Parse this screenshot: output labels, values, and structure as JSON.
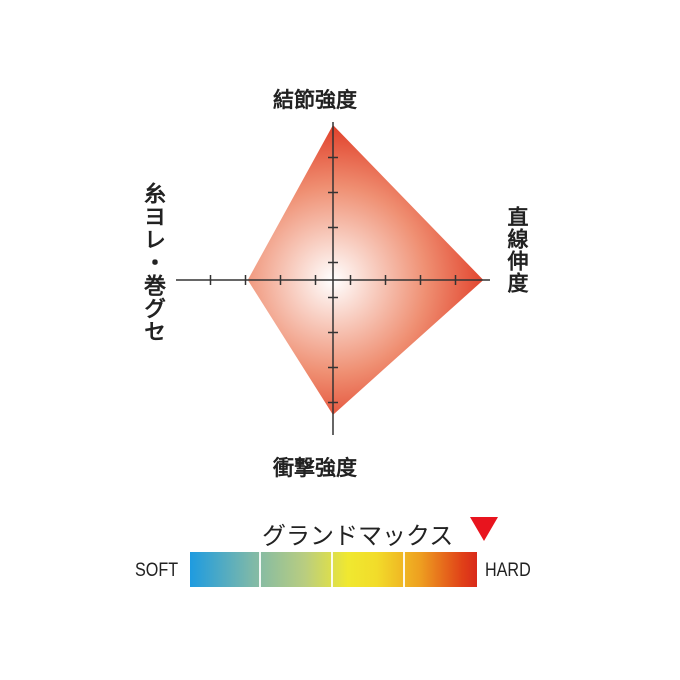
{
  "chart_data": {
    "type": "radar",
    "axes": [
      "結節強度",
      "直線伸度",
      "衝撃強度",
      "糸ヨレ・巻グセ"
    ],
    "values": [
      100,
      97,
      87,
      55
    ],
    "range": [
      0,
      100
    ],
    "fill_color": "#e0301c",
    "center_color": "#ffffff"
  },
  "scale": {
    "title": "グランドマックス",
    "marker_color": "#e8141e",
    "soft_label": "SOFT",
    "hard_label": "HARD",
    "position": "hard-end"
  }
}
